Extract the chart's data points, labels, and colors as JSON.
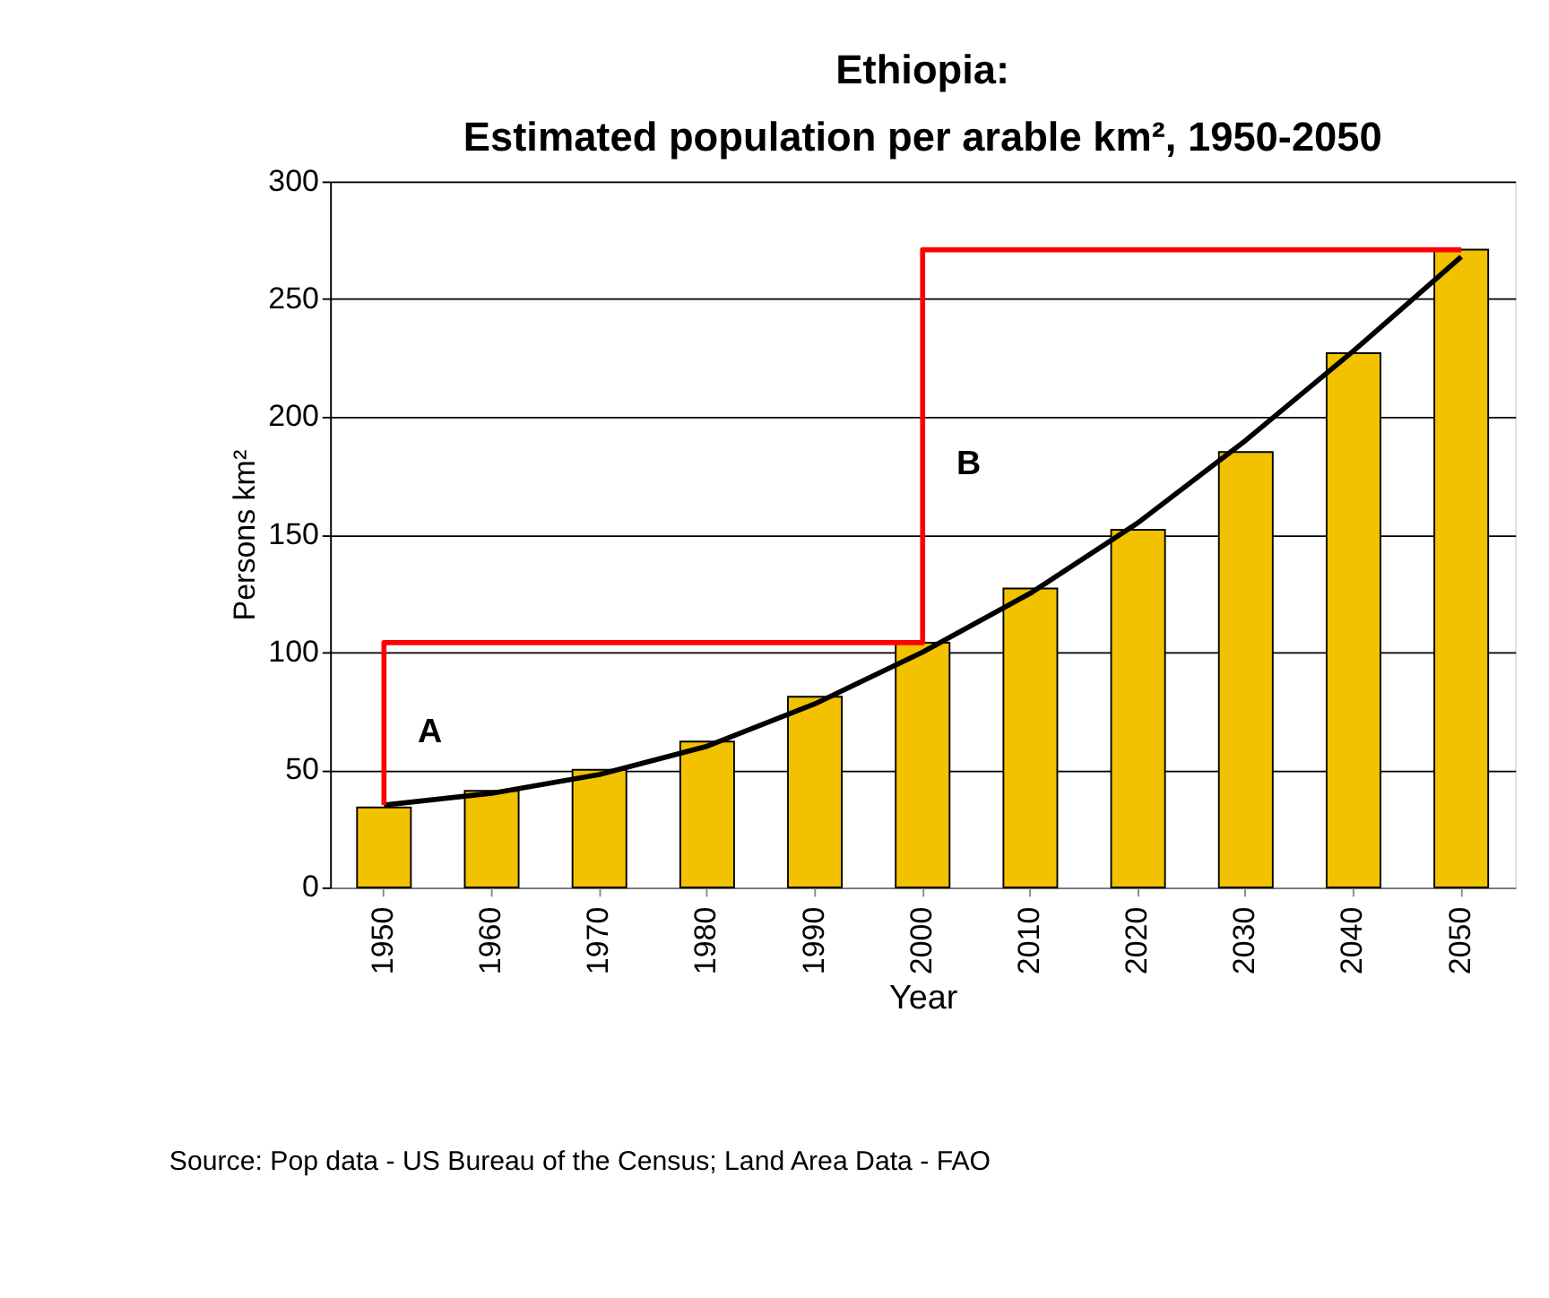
{
  "chart_data": {
    "type": "bar",
    "title": [
      "Ethiopia:",
      "Estimated population per arable km², 1950-2050"
    ],
    "xlabel": "Year",
    "ylabel": "Persons km²",
    "categories": [
      "1950",
      "1960",
      "1970",
      "1980",
      "1990",
      "2000",
      "2010",
      "2020",
      "2030",
      "2040",
      "2050"
    ],
    "series": [
      {
        "type": "bar",
        "color": "#f2c200",
        "values": [
          34,
          41,
          50,
          62,
          81,
          104,
          127,
          152,
          185,
          227,
          271
        ]
      },
      {
        "type": "line",
        "color": "#000000",
        "values": [
          35,
          40,
          48,
          60,
          78,
          100,
          125,
          155,
          190,
          228,
          268
        ]
      },
      {
        "type": "step",
        "color": "#ff0000",
        "values": [
          35,
          104,
          104,
          104,
          104,
          104,
          271,
          271,
          271,
          271,
          271
        ]
      }
    ],
    "ylim": [
      0,
      300
    ],
    "yticks": [
      0,
      50,
      100,
      150,
      200,
      250,
      300
    ],
    "grid": "y",
    "legend": false,
    "marker": "none",
    "line_style": "solid",
    "annotations": [
      {
        "text": "A",
        "x": "1950",
        "y": 66
      },
      {
        "text": "B",
        "x": "2000",
        "y": 180
      },
      "Source: Pop data - US Bureau of the Census; Land Area Data - FAO"
    ]
  }
}
